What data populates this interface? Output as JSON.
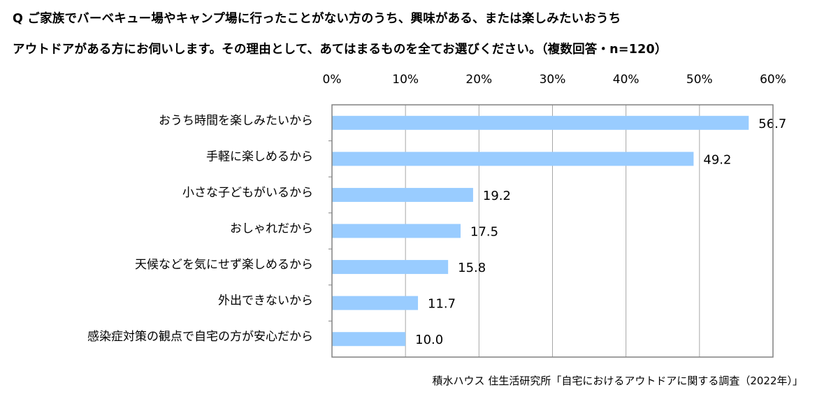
{
  "question": {
    "line1": "Q ご家族でバーベキュー場やキャンプ場に行ったことがない方のうち、興味がある、または楽しみたいおうち",
    "line2": "アウトドアがある方にお伺いします。その理由として、あてはまるものを全てお選びください。（複数回答・n=120）"
  },
  "source": "積水ハウス 住生活研究所「自宅におけるアウトドアに関する調査（2022年）」",
  "chart_data": {
    "type": "bar",
    "orientation": "horizontal",
    "categories": [
      "おうち時間を楽しみたいから",
      "手軽に楽しめるから",
      "小さな子どもがいるから",
      "おしゃれだから",
      "天候などを気にせず楽しめるから",
      "外出できないから",
      "感染症対策の観点で自宅の方が安心だから"
    ],
    "values": [
      56.7,
      49.2,
      19.2,
      17.5,
      15.8,
      11.7,
      10.0
    ],
    "value_labels": [
      "56.7",
      "49.2",
      "19.2",
      "17.5",
      "15.8",
      "11.7",
      "10.0"
    ],
    "xlim": [
      0,
      60
    ],
    "xticks": [
      "0%",
      "10%",
      "20%",
      "30%",
      "40%",
      "50%",
      "60%"
    ],
    "tick_position": "top",
    "grid": true,
    "bar_color": "#99ccff"
  }
}
